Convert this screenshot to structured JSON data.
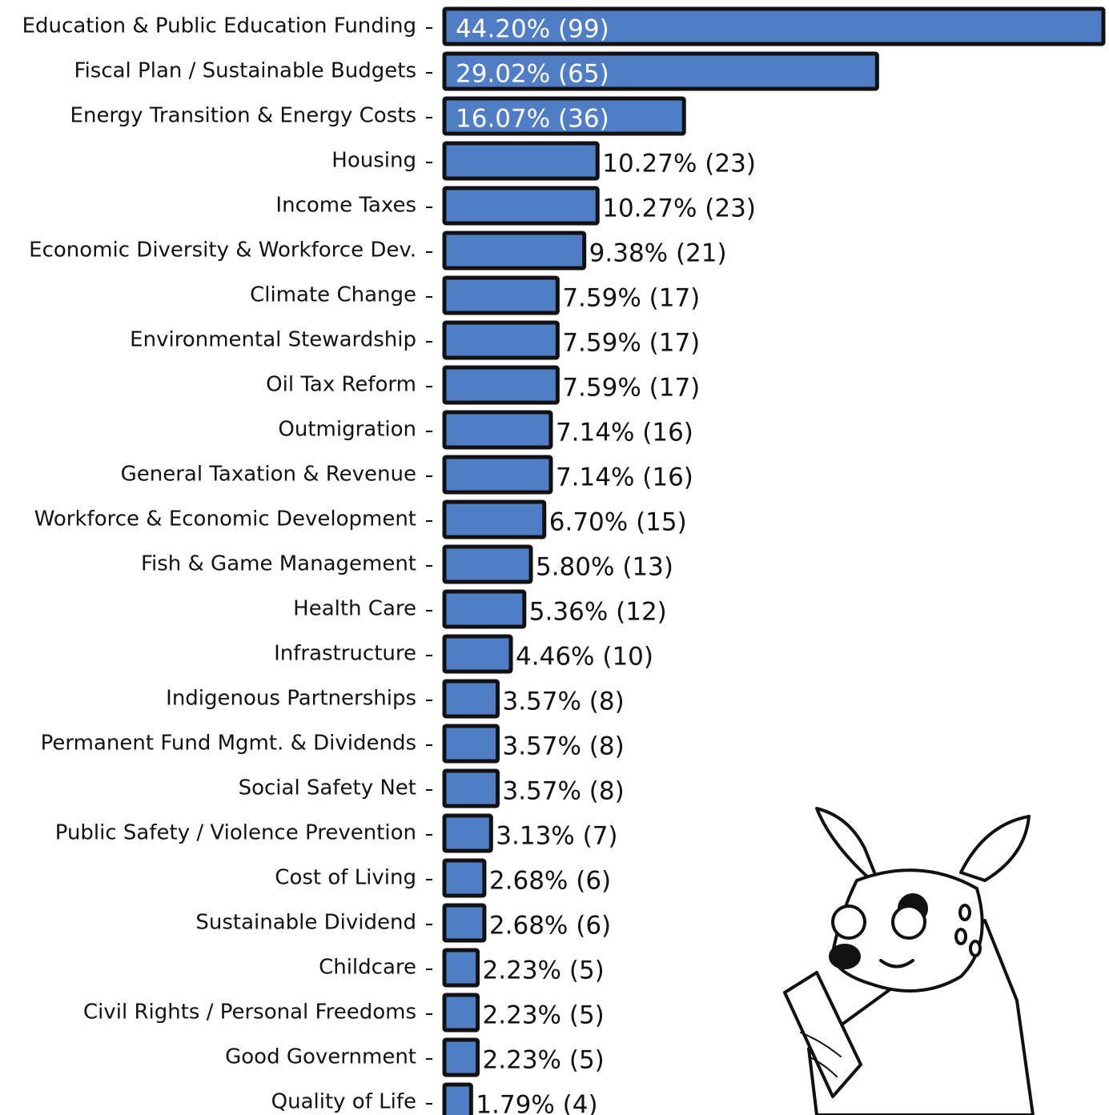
{
  "chart_data": {
    "type": "bar",
    "orientation": "horizontal",
    "color": "#4f7ec6",
    "categories": [
      "Education & Public Education Funding",
      "Fiscal Plan / Sustainable Budgets",
      "Energy Transition & Energy Costs",
      "Housing",
      "Income Taxes",
      "Economic Diversity & Workforce Dev.",
      "Climate Change",
      "Environmental Stewardship",
      "Oil Tax Reform",
      "Outmigration",
      "General Taxation & Revenue",
      "Workforce & Economic Development",
      "Fish & Game Management",
      "Health Care",
      "Infrastructure",
      "Indigenous Partnerships",
      "Permanent Fund Mgmt. & Dividends",
      "Social Safety Net",
      "Public Safety / Violence Prevention",
      "Cost of Living",
      "Sustainable Dividend",
      "Childcare",
      "Civil Rights / Personal Freedoms",
      "Good Government",
      "Quality of Life"
    ],
    "values": [
      44.2,
      29.02,
      16.07,
      10.27,
      10.27,
      9.38,
      7.59,
      7.59,
      7.59,
      7.14,
      7.14,
      6.7,
      5.8,
      5.36,
      4.46,
      3.57,
      3.57,
      3.57,
      3.13,
      2.68,
      2.68,
      2.23,
      2.23,
      2.23,
      1.79
    ],
    "value_labels": [
      "44.20% (99)",
      "29.02% (65)",
      "16.07% (36)",
      "10.27% (23)",
      "10.27% (23)",
      "9.38% (21)",
      "7.59% (17)",
      "7.59% (17)",
      "7.59% (17)",
      "7.14% (16)",
      "7.14% (16)",
      "6.70% (15)",
      "5.80% (13)",
      "5.36% (12)",
      "4.46% (10)",
      "3.57% (8)",
      "3.57% (8)",
      "3.57% (8)",
      "3.13% (7)",
      "2.68% (6)",
      "2.68% (6)",
      "2.23% (5)",
      "2.23% (5)",
      "2.23% (5)",
      "1.79% (4)"
    ]
  }
}
